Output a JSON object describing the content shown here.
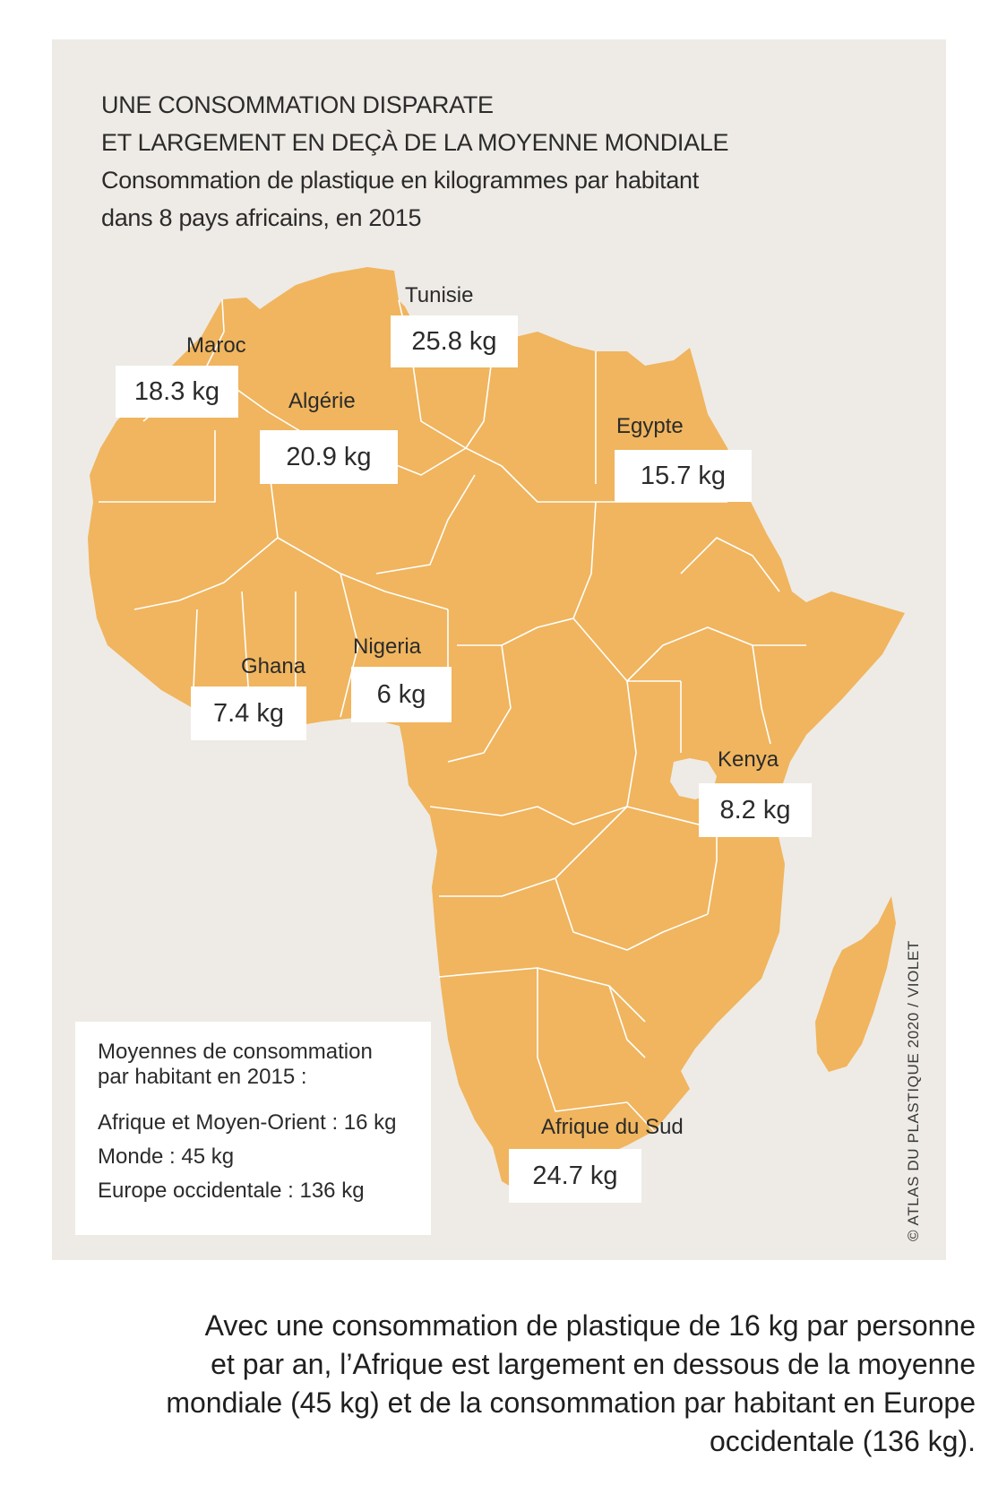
{
  "title": {
    "line1": "UNE CONSOMMATION DISPARATE",
    "line2": "ET LARGEMENT EN DEÇÀ DE LA MOYENNE MONDIALE",
    "subtitle1": "Consommation de plastique en kilogrammes par habitant",
    "subtitle2": "dans 8 pays africains, en 2015"
  },
  "countries": {
    "tunisie": {
      "name": "Tunisie",
      "value": "25.8 kg"
    },
    "maroc": {
      "name": "Maroc",
      "value": "18.3 kg"
    },
    "algerie": {
      "name": "Algérie",
      "value": "20.9 kg"
    },
    "egypte": {
      "name": "Egypte",
      "value": "15.7 kg"
    },
    "nigeria": {
      "name": "Nigeria",
      "value": "6 kg"
    },
    "ghana": {
      "name": "Ghana",
      "value": "7.4 kg"
    },
    "kenya": {
      "name": "Kenya",
      "value": "8.2 kg"
    },
    "afrique_du_sud": {
      "name": "Afrique du Sud",
      "value": "24.7 kg"
    }
  },
  "legend": {
    "title1": "Moyennes de consommation",
    "title2": "par habitant en 2015 :",
    "items": [
      "Afrique et Moyen-Orient : 16 kg",
      "Monde : 45 kg",
      "Europe occidentale : 136 kg"
    ]
  },
  "credit": "© ATLAS DU PLASTIQUE 2020 / VIOLET",
  "caption": {
    "line1": "Avec une consommation de plastique de 16 kg par personne",
    "line2": "et par an, l’Afrique est largement en dessous de la moyenne",
    "line3": "mondiale (45 kg) et de la consommation par habitant en Europe",
    "line4": "occidentale (136 kg)."
  },
  "colors": {
    "land": "#f0b55e",
    "panel": "#eeebe6",
    "label_box": "#ffffff"
  }
}
